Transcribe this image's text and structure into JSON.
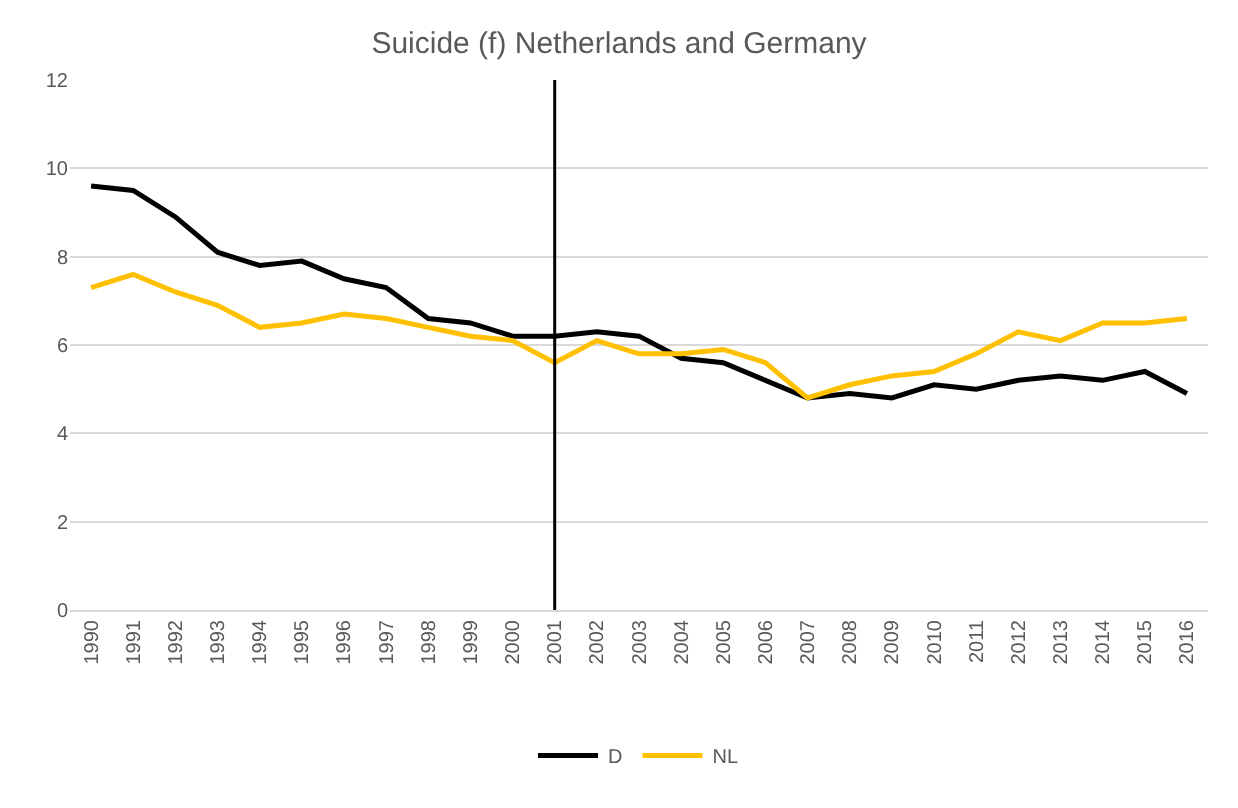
{
  "chart_data": {
    "type": "line",
    "title": "Suicide (f) Netherlands and Germany",
    "categories": [
      "1990",
      "1991",
      "1992",
      "1993",
      "1994",
      "1995",
      "1996",
      "1997",
      "1998",
      "1999",
      "2000",
      "2001",
      "2002",
      "2003",
      "2004",
      "2005",
      "2006",
      "2007",
      "2008",
      "2009",
      "2010",
      "2011",
      "2012",
      "2013",
      "2014",
      "2015",
      "2016"
    ],
    "series": [
      {
        "name": "D",
        "color": "#000000",
        "values": [
          9.6,
          9.5,
          8.9,
          8.1,
          7.8,
          7.9,
          7.5,
          7.3,
          6.6,
          6.5,
          6.2,
          6.2,
          6.3,
          6.2,
          5.7,
          5.6,
          5.2,
          4.8,
          4.9,
          4.8,
          5.1,
          5.0,
          5.2,
          5.3,
          5.2,
          5.4,
          4.9
        ]
      },
      {
        "name": "NL",
        "color": "#ffc000",
        "values": [
          7.3,
          7.6,
          7.2,
          6.9,
          6.4,
          6.5,
          6.7,
          6.6,
          6.4,
          6.2,
          6.1,
          5.6,
          6.1,
          5.8,
          5.8,
          5.9,
          5.6,
          4.8,
          5.1,
          5.3,
          5.4,
          5.8,
          6.3,
          6.1,
          6.5,
          6.5,
          6.6
        ]
      }
    ],
    "ylim": [
      0,
      12
    ],
    "yticks": [
      0,
      2,
      4,
      6,
      8,
      10,
      12
    ],
    "grid": "y",
    "legend": "bottom",
    "ref_lines": [
      {
        "axis": "x",
        "value": "2001",
        "color": "#000000"
      }
    ]
  }
}
